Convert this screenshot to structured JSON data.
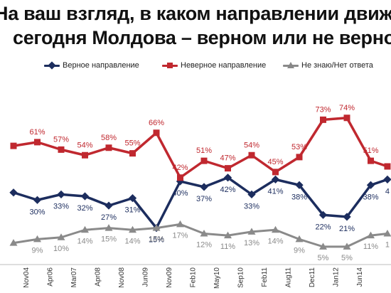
{
  "title": {
    "line1": "На ваш взгляд, в каком направлении движе",
    "line2": "сегодня Молдова – верном или не верном"
  },
  "chart_data": {
    "type": "line",
    "categories": [
      "Nov04",
      "Apr06",
      "Mar07",
      "Apr08",
      "Nov08",
      "Jun09",
      "Nov09",
      "Feb10",
      "May10",
      "Sep10",
      "Feb11",
      "Aug11",
      "Dec11",
      "Jan12",
      "Jun14"
    ],
    "series": [
      {
        "name": "Верное направление",
        "color": "#1c2d5e",
        "values": [
          34,
          30,
          33,
          32,
          27,
          31,
          15,
          40,
          37,
          42,
          33,
          41,
          38,
          22,
          21,
          38,
          41
        ],
        "x": [
          -0.5,
          0.5,
          1.5,
          2.5,
          3.5,
          4.5,
          5.5,
          6.5,
          7.5,
          8.5,
          9.5,
          10.5,
          11.5,
          12.5,
          13.5,
          14.5,
          15.2
        ],
        "labels": [
          null,
          "30%",
          "33%",
          "32%",
          "27%",
          "31%",
          "15%",
          "40%",
          "37%",
          "42%",
          "33%",
          "41%",
          "38%",
          "22%",
          "21%",
          "38%",
          "4"
        ]
      },
      {
        "name": "Неверное направление",
        "color": "#c0282f",
        "values": [
          59,
          61,
          57,
          54,
          58,
          55,
          66,
          42,
          51,
          47,
          54,
          45,
          53,
          73,
          74,
          51,
          48
        ],
        "x": [
          -0.5,
          0.5,
          1.5,
          2.5,
          3.5,
          4.5,
          5.5,
          6.5,
          7.5,
          8.5,
          9.5,
          10.5,
          11.5,
          12.5,
          13.5,
          14.5,
          15.2
        ],
        "labels": [
          null,
          "61%",
          "57%",
          "54%",
          "58%",
          "55%",
          "66%",
          "42%",
          "51%",
          "47%",
          "54%",
          "45%",
          "53%",
          "73%",
          "74%",
          "51%",
          null
        ]
      },
      {
        "name": "Не знаю/Нет ответа",
        "color": "#8a8a8a",
        "values": [
          7,
          9,
          10,
          14,
          15,
          14,
          15,
          17,
          12,
          11,
          13,
          14,
          9,
          5,
          5,
          11,
          12
        ],
        "x": [
          -0.5,
          0.5,
          1.5,
          2.5,
          3.5,
          4.5,
          5.5,
          6.5,
          7.5,
          8.5,
          9.5,
          10.5,
          11.5,
          12.5,
          13.5,
          14.5,
          15.2
        ],
        "labels": [
          null,
          "9%",
          "10%",
          "14%",
          "15%",
          "14%",
          "15%",
          "17%",
          "12%",
          "11%",
          "13%",
          "14%",
          "9%",
          "5%",
          "5%",
          "11%",
          "1"
        ]
      }
    ],
    "ylim": [
      0,
      80
    ],
    "grid": false,
    "legend_position": "top"
  }
}
